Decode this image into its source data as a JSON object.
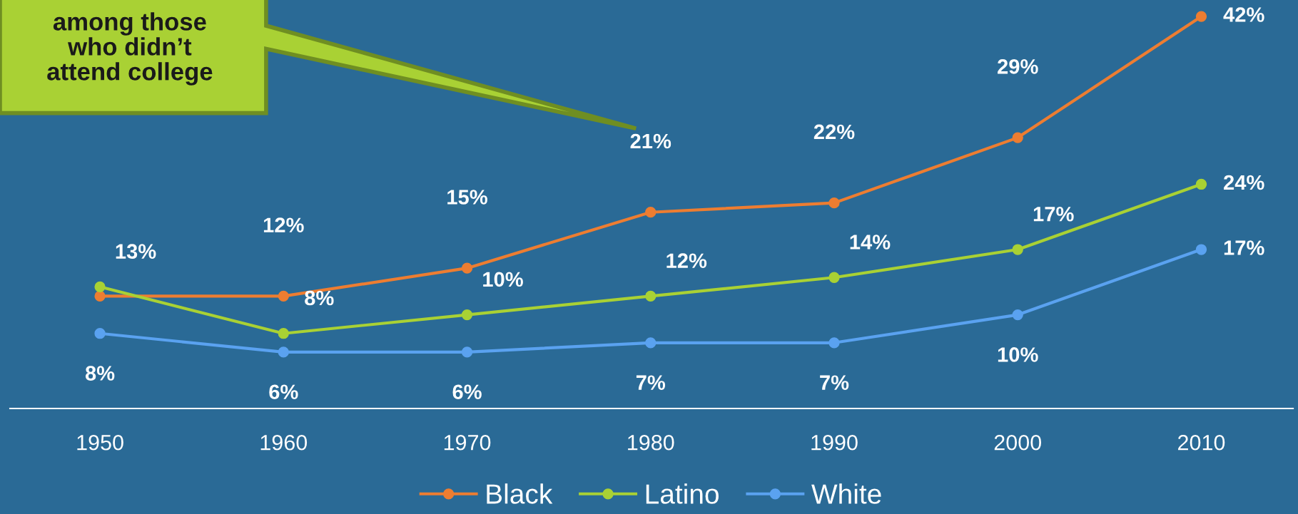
{
  "chart_data": {
    "type": "line",
    "categories": [
      "1950",
      "1960",
      "1970",
      "1980",
      "1990",
      "2000",
      "2010"
    ],
    "series": [
      {
        "name": "Black",
        "color": "#ed7d31",
        "values": [
          12,
          12,
          15,
          21,
          22,
          29,
          42
        ],
        "value_labels": [
          null,
          "12%",
          "15%",
          "21%",
          "22%",
          "29%",
          "42%"
        ]
      },
      {
        "name": "Latino",
        "color": "#a9d134",
        "values": [
          13,
          8,
          10,
          12,
          14,
          17,
          24
        ],
        "value_labels": [
          "13%",
          "8%",
          "10%",
          "12%",
          "14%",
          "17%",
          "24%"
        ]
      },
      {
        "name": "White",
        "color": "#5aa2f0",
        "values": [
          8,
          6,
          6,
          7,
          7,
          10,
          17
        ],
        "value_labels": [
          "8%",
          "6%",
          "6%",
          "7%",
          "7%",
          "10%",
          "17%"
        ]
      }
    ],
    "tick_labels": "x",
    "legend": "bottom",
    "marker": "circle",
    "line_style": "solid",
    "grid": false,
    "annotations": [
      "among those\nwho didn’t\nattend college"
    ]
  }
}
